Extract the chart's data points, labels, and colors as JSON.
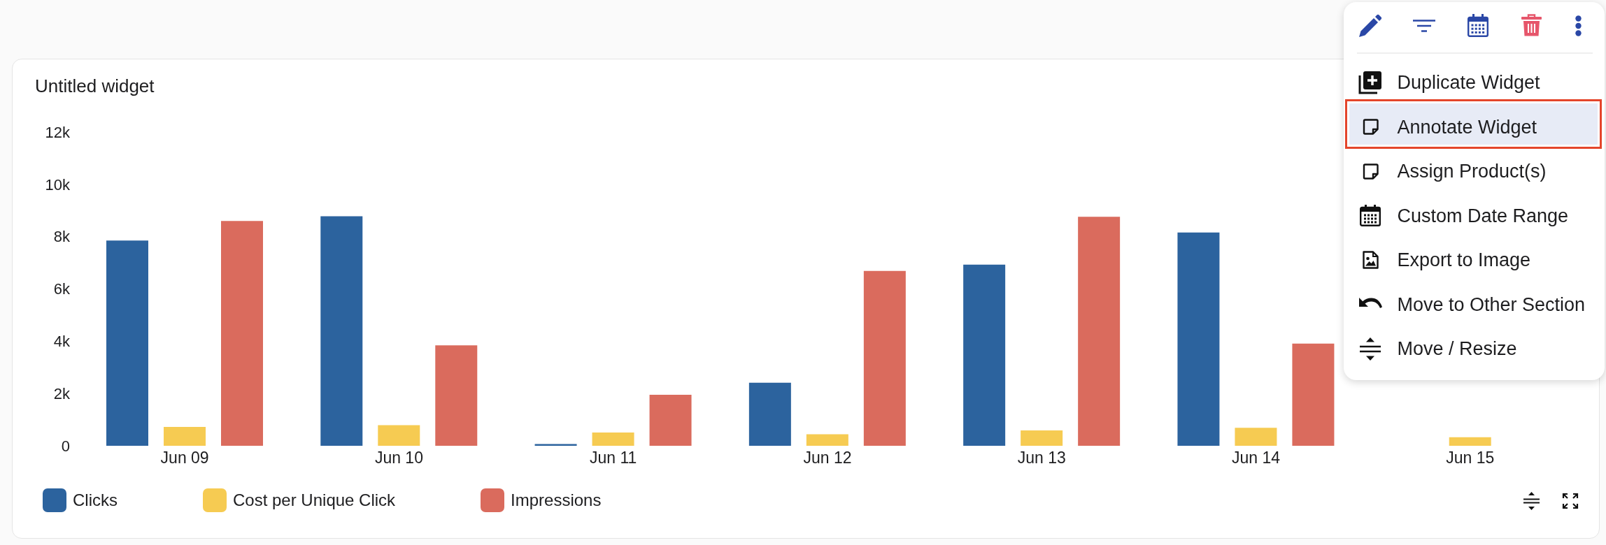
{
  "chart_data": {
    "type": "bar",
    "title": "Untitled widget",
    "categories": [
      "Jun 09",
      "Jun 10",
      "Jun 11",
      "Jun 12",
      "Jun 13",
      "Jun 14",
      "Jun 15"
    ],
    "series": [
      {
        "name": "Clicks",
        "color": "#2c639e",
        "values": [
          7850,
          8780,
          70,
          2410,
          6930,
          8160,
          null
        ]
      },
      {
        "name": "Cost per Unique Click",
        "color": "#f6cb52",
        "values": [
          720,
          790,
          510,
          440,
          590,
          690,
          330
        ]
      },
      {
        "name": "Impressions",
        "color": "#da6b5d",
        "values": [
          8600,
          3840,
          1950,
          6690,
          8760,
          3910,
          null
        ]
      }
    ],
    "ylim": [
      0,
      12000
    ],
    "yticks": [
      0,
      {
        "value": 2000,
        "label": "2k"
      },
      {
        "value": 4000,
        "label": "4k"
      },
      {
        "value": 6000,
        "label": "6k"
      },
      {
        "value": 8000,
        "label": "8k"
      },
      {
        "value": 10000,
        "label": "10k"
      },
      {
        "value": 12000,
        "label": "12k"
      }
    ],
    "legend": "bottom left",
    "annotations": [
      "Duplicate Widget",
      "Annotate Widget",
      "Assign Product(s)",
      "Custom Date Range",
      "Export to Image",
      "Move to Other Section",
      "Move / Resize"
    ]
  }
}
